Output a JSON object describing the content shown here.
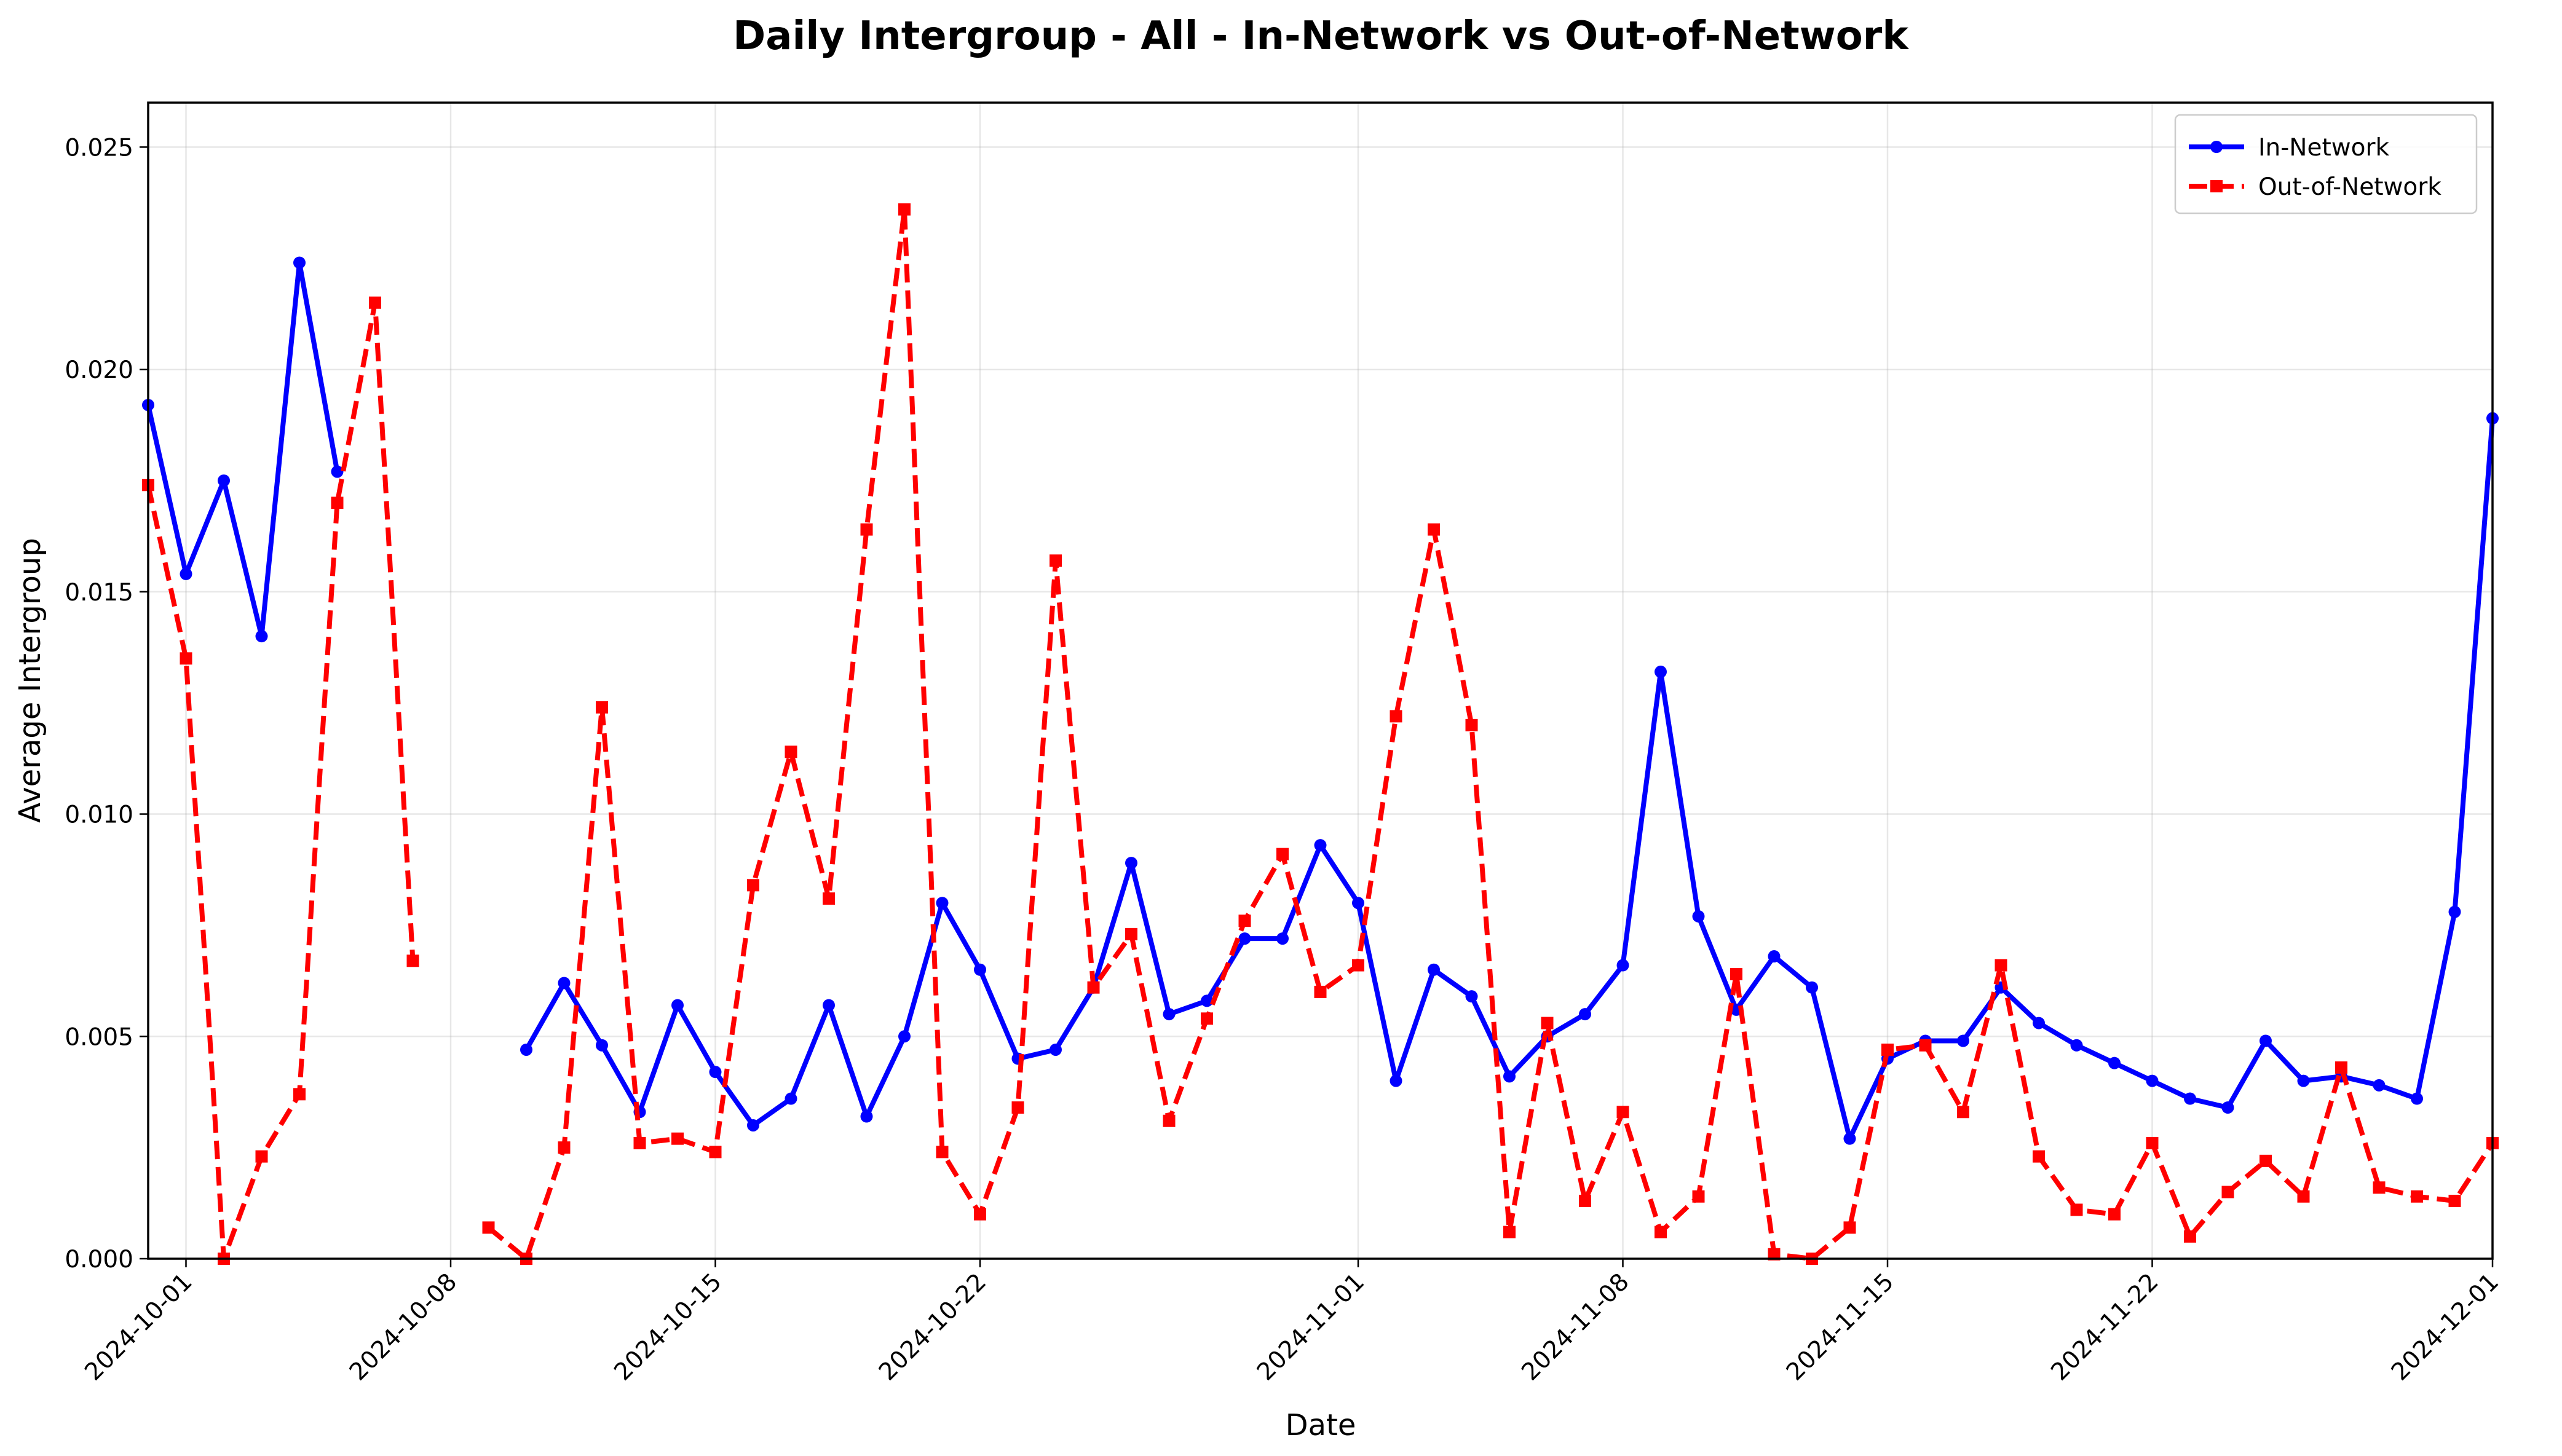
{
  "chart_data": {
    "type": "line",
    "title": "Daily Intergroup - All - In-Network vs Out-of-Network",
    "xlabel": "Date",
    "ylabel": "Average Intergroup",
    "xlim": [
      "2024-09-30",
      "2024-12-01"
    ],
    "ylim": [
      0,
      0.026
    ],
    "x_ticks": [
      "2024-10-01",
      "2024-10-08",
      "2024-10-15",
      "2024-10-22",
      "2024-11-01",
      "2024-11-08",
      "2024-11-15",
      "2024-11-22",
      "2024-12-01"
    ],
    "y_ticks": [
      "0.000",
      "0.005",
      "0.010",
      "0.015",
      "0.020",
      "0.025"
    ],
    "grid": true,
    "legend_position": "top-right",
    "colors": {
      "in_network": "#0000ff",
      "out_of_network": "#ff0000"
    },
    "series": [
      {
        "name": "In-Network",
        "color": "#0000ff",
        "style": "solid",
        "marker": "circle",
        "points": [
          [
            "2024-09-30",
            0.0192
          ],
          [
            "2024-10-01",
            0.0154
          ],
          [
            "2024-10-02",
            0.0175
          ],
          [
            "2024-10-03",
            0.014
          ],
          [
            "2024-10-04",
            0.0224
          ],
          [
            "2024-10-05",
            0.0177
          ],
          [
            "2024-10-10",
            0.0047
          ],
          [
            "2024-10-11",
            0.0062
          ],
          [
            "2024-10-12",
            0.0048
          ],
          [
            "2024-10-13",
            0.0033
          ],
          [
            "2024-10-14",
            0.0057
          ],
          [
            "2024-10-15",
            0.0042
          ],
          [
            "2024-10-16",
            0.003
          ],
          [
            "2024-10-17",
            0.0036
          ],
          [
            "2024-10-18",
            0.0057
          ],
          [
            "2024-10-19",
            0.0032
          ],
          [
            "2024-10-20",
            0.005
          ],
          [
            "2024-10-21",
            0.008
          ],
          [
            "2024-10-22",
            0.0065
          ],
          [
            "2024-10-23",
            0.0045
          ],
          [
            "2024-10-24",
            0.0047
          ],
          [
            "2024-10-25",
            0.0061
          ],
          [
            "2024-10-26",
            0.0089
          ],
          [
            "2024-10-27",
            0.0055
          ],
          [
            "2024-10-28",
            0.0058
          ],
          [
            "2024-10-29",
            0.0072
          ],
          [
            "2024-10-30",
            0.0072
          ],
          [
            "2024-10-31",
            0.0093
          ],
          [
            "2024-11-01",
            0.008
          ],
          [
            "2024-11-02",
            0.004
          ],
          [
            "2024-11-03",
            0.0065
          ],
          [
            "2024-11-04",
            0.0059
          ],
          [
            "2024-11-05",
            0.0041
          ],
          [
            "2024-11-06",
            0.005
          ],
          [
            "2024-11-07",
            0.0055
          ],
          [
            "2024-11-08",
            0.0066
          ],
          [
            "2024-11-09",
            0.0132
          ],
          [
            "2024-11-10",
            0.0077
          ],
          [
            "2024-11-11",
            0.0056
          ],
          [
            "2024-11-12",
            0.0068
          ],
          [
            "2024-11-13",
            0.0061
          ],
          [
            "2024-11-14",
            0.0027
          ],
          [
            "2024-11-15",
            0.0045
          ],
          [
            "2024-11-16",
            0.0049
          ],
          [
            "2024-11-17",
            0.0049
          ],
          [
            "2024-11-18",
            0.0061
          ],
          [
            "2024-11-19",
            0.0053
          ],
          [
            "2024-11-20",
            0.0048
          ],
          [
            "2024-11-21",
            0.0044
          ],
          [
            "2024-11-22",
            0.004
          ],
          [
            "2024-11-23",
            0.0036
          ],
          [
            "2024-11-24",
            0.0034
          ],
          [
            "2024-11-25",
            0.0049
          ],
          [
            "2024-11-26",
            0.004
          ],
          [
            "2024-11-27",
            0.0041
          ],
          [
            "2024-11-28",
            0.0039
          ],
          [
            "2024-11-29",
            0.0036
          ],
          [
            "2024-11-30",
            0.0078
          ],
          [
            "2024-12-01",
            0.0189
          ]
        ]
      },
      {
        "name": "Out-of-Network",
        "color": "#ff0000",
        "style": "dashed",
        "marker": "square",
        "points": [
          [
            "2024-09-30",
            0.0174
          ],
          [
            "2024-10-01",
            0.0135
          ],
          [
            "2024-10-02",
            0.0
          ],
          [
            "2024-10-03",
            0.0023
          ],
          [
            "2024-10-04",
            0.0037
          ],
          [
            "2024-10-05",
            0.017
          ],
          [
            "2024-10-06",
            0.0215
          ],
          [
            "2024-10-07",
            0.0067
          ],
          [
            "2024-10-09",
            0.0007
          ],
          [
            "2024-10-10",
            0.0
          ],
          [
            "2024-10-11",
            0.0025
          ],
          [
            "2024-10-12",
            0.0124
          ],
          [
            "2024-10-13",
            0.0026
          ],
          [
            "2024-10-14",
            0.0027
          ],
          [
            "2024-10-15",
            0.0024
          ],
          [
            "2024-10-16",
            0.0084
          ],
          [
            "2024-10-17",
            0.0114
          ],
          [
            "2024-10-18",
            0.0081
          ],
          [
            "2024-10-19",
            0.0164
          ],
          [
            "2024-10-20",
            0.0236
          ],
          [
            "2024-10-21",
            0.0024
          ],
          [
            "2024-10-22",
            0.001
          ],
          [
            "2024-10-23",
            0.0034
          ],
          [
            "2024-10-24",
            0.0157
          ],
          [
            "2024-10-25",
            0.0061
          ],
          [
            "2024-10-26",
            0.0073
          ],
          [
            "2024-10-27",
            0.0031
          ],
          [
            "2024-10-28",
            0.0054
          ],
          [
            "2024-10-29",
            0.0076
          ],
          [
            "2024-10-30",
            0.0091
          ],
          [
            "2024-10-31",
            0.006
          ],
          [
            "2024-11-01",
            0.0066
          ],
          [
            "2024-11-02",
            0.0122
          ],
          [
            "2024-11-03",
            0.0164
          ],
          [
            "2024-11-04",
            0.012
          ],
          [
            "2024-11-05",
            0.0006
          ],
          [
            "2024-11-06",
            0.0053
          ],
          [
            "2024-11-07",
            0.0013
          ],
          [
            "2024-11-08",
            0.0033
          ],
          [
            "2024-11-09",
            0.0006
          ],
          [
            "2024-11-10",
            0.0014
          ],
          [
            "2024-11-11",
            0.0064
          ],
          [
            "2024-11-12",
            0.0001
          ],
          [
            "2024-11-13",
            0.0
          ],
          [
            "2024-11-14",
            0.0007
          ],
          [
            "2024-11-15",
            0.0047
          ],
          [
            "2024-11-16",
            0.0048
          ],
          [
            "2024-11-17",
            0.0033
          ],
          [
            "2024-11-18",
            0.0066
          ],
          [
            "2024-11-19",
            0.0023
          ],
          [
            "2024-11-20",
            0.0011
          ],
          [
            "2024-11-21",
            0.001
          ],
          [
            "2024-11-22",
            0.0026
          ],
          [
            "2024-11-23",
            0.0005
          ],
          [
            "2024-11-24",
            0.0015
          ],
          [
            "2024-11-25",
            0.0022
          ],
          [
            "2024-11-26",
            0.0014
          ],
          [
            "2024-11-27",
            0.0043
          ],
          [
            "2024-11-28",
            0.0016
          ],
          [
            "2024-11-29",
            0.0014
          ],
          [
            "2024-11-30",
            0.0013
          ],
          [
            "2024-12-01",
            0.0026
          ]
        ]
      }
    ]
  }
}
